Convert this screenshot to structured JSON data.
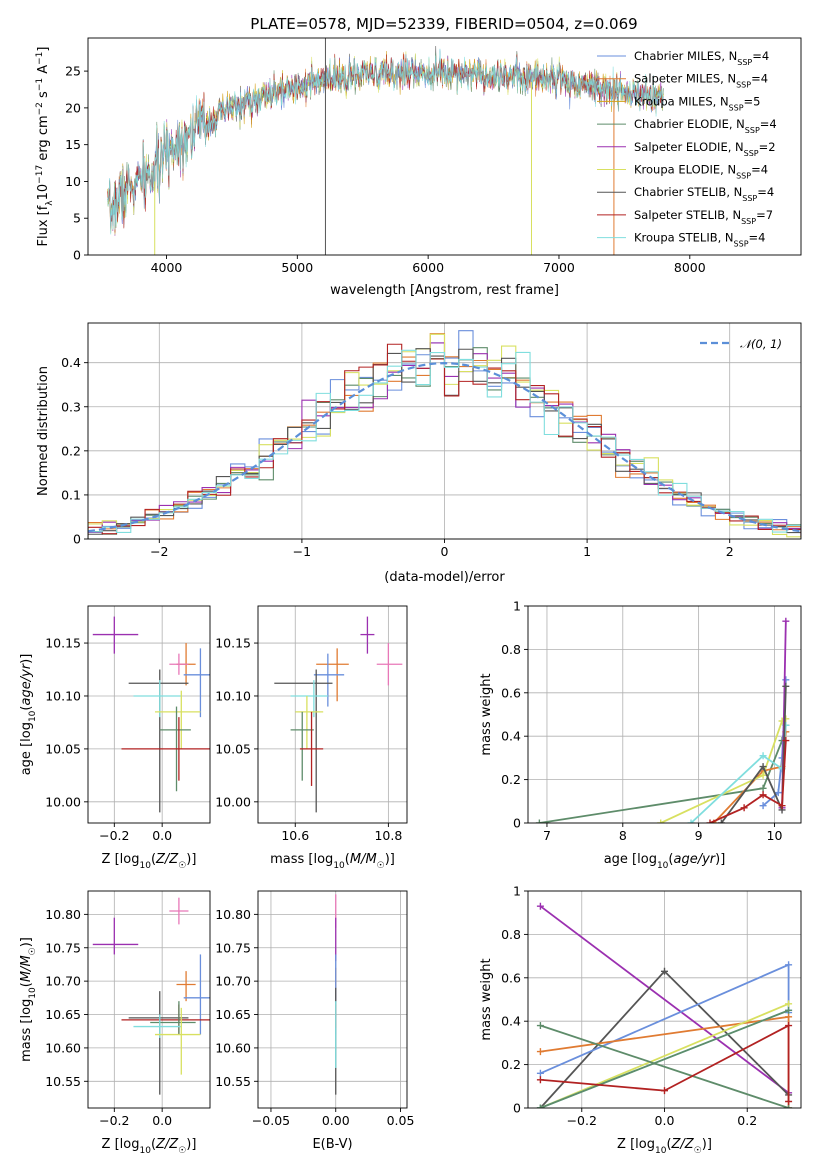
{
  "figure_title": "PLATE=0578, MJD=52339, FIBERID=0504, z=0.069",
  "colors": {
    "Chabrier MILES": "#6a8fdc",
    "Salpeter MILES": "#e07b32",
    "Kroupa MILES": "#d4a017",
    "Chabrier ELODIE": "#5e8c6a",
    "Salpeter ELODIE": "#9b30b0",
    "Kroupa ELODIE": "#d8e060",
    "Chabrier STELIB": "#555555",
    "Salpeter STELIB": "#b22222",
    "Kroupa STELIB": "#80dede",
    "pink": "#e878b8",
    "normal": "#5b8fd8",
    "grid": "#b0b0b0"
  },
  "chart_data": [
    {
      "type": "line",
      "panel": "spectrum",
      "xlabel": "wavelength [Angstrom, rest frame]",
      "ylabel": "Flux [f_λ10^-17 erg cm^-2 s^-1 A^-1]",
      "xlim": [
        3400,
        8850
      ],
      "ylim": [
        0,
        29.5
      ],
      "xticks": [
        4000,
        5000,
        6000,
        7000,
        8000
      ],
      "yticks": [
        0,
        5,
        10,
        15,
        20,
        25
      ],
      "grid": false,
      "legend_position": "top-right",
      "legend": [
        {
          "label": "Chabrier MILES, N",
          "sub": "SSP",
          "n": "=4",
          "color_key": "Chabrier MILES"
        },
        {
          "label": "Salpeter MILES, N",
          "sub": "SSP",
          "n": "=4",
          "color_key": "Salpeter MILES"
        },
        {
          "label": "Kroupa MILES, N",
          "sub": "SSP",
          "n": "=5",
          "color_key": "Kroupa MILES"
        },
        {
          "label": "Chabrier ELODIE, N",
          "sub": "SSP",
          "n": "=4",
          "color_key": "Chabrier ELODIE"
        },
        {
          "label": "Salpeter ELODIE, N",
          "sub": "SSP",
          "n": "=2",
          "color_key": "Salpeter ELODIE"
        },
        {
          "label": "Kroupa ELODIE, N",
          "sub": "SSP",
          "n": "=4",
          "color_key": "Kroupa ELODIE"
        },
        {
          "label": "Chabrier STELIB, N",
          "sub": "SSP",
          "n": "=4",
          "color_key": "Chabrier STELIB"
        },
        {
          "label": "Salpeter STELIB, N",
          "sub": "SSP",
          "n": "=7",
          "color_key": "Salpeter STELIB"
        },
        {
          "label": "Kroupa STELIB, N",
          "sub": "SSP",
          "n": "=4",
          "color_key": "Kroupa STELIB"
        }
      ],
      "continuum": {
        "x": [
          3550,
          3700,
          3900,
          4000,
          4200,
          4500,
          5000,
          5500,
          6000,
          6500,
          7000,
          7500,
          7800
        ],
        "y": [
          5.5,
          9,
          11,
          14,
          17,
          20,
          23,
          24.5,
          25,
          24.5,
          24,
          22,
          21.5
        ]
      },
      "spikes": [
        {
          "x": 3910,
          "ymin": 0,
          "ymax": 10,
          "color_key": "Kroupa ELODIE"
        },
        {
          "x": 5215,
          "ymin": 0,
          "ymax": 29.5,
          "color_key": "Chabrier STELIB"
        },
        {
          "x": 6790,
          "ymin": 0,
          "ymax": 23.5,
          "color_key": "Kroupa ELODIE"
        },
        {
          "x": 7420,
          "ymin": 0,
          "ymax": 24,
          "color_key": "Salpeter MILES"
        }
      ]
    },
    {
      "type": "histogram",
      "panel": "residuals",
      "xlabel": "(data-model)/error",
      "ylabel": "Normed distribution",
      "xlim": [
        -2.5,
        2.5
      ],
      "ylim": [
        0,
        0.49
      ],
      "xticks": [
        -2,
        -1,
        0,
        1,
        2
      ],
      "yticks": [
        0.0,
        0.1,
        0.2,
        0.3,
        0.4
      ],
      "grid": true,
      "bin_width": 0.1,
      "legend_position": "top-right",
      "normal_label": "N(0, 1)",
      "normal_label_glyph": "𝒩(0, 1)",
      "series_color_keys": [
        "Chabrier MILES",
        "Salpeter MILES",
        "Chabrier ELODIE",
        "Salpeter ELODIE",
        "Kroupa ELODIE",
        "Chabrier STELIB",
        "Salpeter STELIB",
        "Kroupa STELIB"
      ]
    },
    {
      "type": "errorbar",
      "panel": "age-vs-Z",
      "xlabel": "Z [log10(Z/Z☉)]",
      "ylabel": "age [log10(age/yr)]",
      "xlim": [
        -0.31,
        0.2
      ],
      "ylim": [
        9.98,
        10.185
      ],
      "xticks": [
        -0.2,
        0.0
      ],
      "xtick_labels": [
        "−0.2",
        "0.0"
      ],
      "yticks": [
        10.0,
        10.05,
        10.1,
        10.15
      ],
      "ytick_labels": [
        "10.00",
        "10.05",
        "10.10",
        "10.15"
      ],
      "grid": true,
      "points": [
        {
          "x": -0.2,
          "y": 10.158,
          "ex": [
            -0.29,
            -0.1
          ],
          "ey": [
            10.14,
            10.175
          ],
          "color_key": "Salpeter ELODIE"
        },
        {
          "x": 0.1,
          "y": 10.13,
          "ex": [
            0.06,
            0.14
          ],
          "ey": [
            10.11,
            10.15
          ],
          "color_key": "Salpeter MILES"
        },
        {
          "x": 0.07,
          "y": 10.13,
          "ex": [
            0.03,
            0.11
          ],
          "ey": [
            10.12,
            10.14
          ],
          "color_key": "pink"
        },
        {
          "x": 0.16,
          "y": 10.12,
          "ex": [
            0.09,
            0.2
          ],
          "ey": [
            10.08,
            10.145
          ],
          "color_key": "Chabrier MILES"
        },
        {
          "x": -0.01,
          "y": 10.112,
          "ex": [
            -0.14,
            0.11
          ],
          "ey": [
            9.99,
            10.125
          ],
          "color_key": "Chabrier STELIB"
        },
        {
          "x": -0.01,
          "y": 10.1,
          "ex": [
            -0.12,
            0.08
          ],
          "ey": [
            10.08,
            10.115
          ],
          "color_key": "Kroupa STELIB"
        },
        {
          "x": 0.08,
          "y": 10.085,
          "ex": [
            -0.03,
            0.16
          ],
          "ey": [
            10.05,
            10.105
          ],
          "color_key": "Kroupa ELODIE"
        },
        {
          "x": 0.06,
          "y": 10.068,
          "ex": [
            -0.01,
            0.12
          ],
          "ey": [
            10.01,
            10.09
          ],
          "color_key": "Chabrier ELODIE"
        },
        {
          "x": 0.07,
          "y": 10.05,
          "ex": [
            -0.17,
            0.2
          ],
          "ey": [
            10.02,
            10.08
          ],
          "color_key": "Salpeter STELIB"
        }
      ]
    },
    {
      "type": "errorbar",
      "panel": "age-vs-mass",
      "xlabel": "mass [log10(M/M☉)]",
      "xlim": [
        10.52,
        10.84
      ],
      "ylim": [
        9.98,
        10.185
      ],
      "xticks": [
        10.6,
        10.8
      ],
      "xtick_labels": [
        "10.6",
        "10.8"
      ],
      "yticks": [
        10.0,
        10.05,
        10.1,
        10.15
      ],
      "ytick_labels": [
        "10.00",
        "10.05",
        "10.10",
        "10.15"
      ],
      "grid": true,
      "points": [
        {
          "x": 10.755,
          "y": 10.158,
          "ex": [
            10.74,
            10.77
          ],
          "ey": [
            10.14,
            10.175
          ],
          "color_key": "Salpeter ELODIE"
        },
        {
          "x": 10.8,
          "y": 10.13,
          "ex": [
            10.775,
            10.83
          ],
          "ey": [
            10.11,
            10.15
          ],
          "color_key": "pink"
        },
        {
          "x": 10.69,
          "y": 10.13,
          "ex": [
            10.645,
            10.715
          ],
          "ey": [
            10.095,
            10.145
          ],
          "color_key": "Salpeter MILES"
        },
        {
          "x": 10.67,
          "y": 10.12,
          "ex": [
            10.64,
            10.705
          ],
          "ey": [
            10.09,
            10.14
          ],
          "color_key": "Chabrier MILES"
        },
        {
          "x": 10.645,
          "y": 10.112,
          "ex": [
            10.555,
            10.68
          ],
          "ey": [
            9.99,
            10.125
          ],
          "color_key": "Chabrier STELIB"
        },
        {
          "x": 10.64,
          "y": 10.1,
          "ex": [
            10.59,
            10.67
          ],
          "ey": [
            10.08,
            10.115
          ],
          "color_key": "Kroupa STELIB"
        },
        {
          "x": 10.625,
          "y": 10.085,
          "ex": [
            10.6,
            10.66
          ],
          "ey": [
            10.05,
            10.1
          ],
          "color_key": "Kroupa ELODIE"
        },
        {
          "x": 10.615,
          "y": 10.068,
          "ex": [
            10.59,
            10.64
          ],
          "ey": [
            10.02,
            10.085
          ],
          "color_key": "Chabrier ELODIE"
        },
        {
          "x": 10.635,
          "y": 10.05,
          "ex": [
            10.61,
            10.66
          ],
          "ey": [
            10.015,
            10.085
          ],
          "color_key": "Salpeter STELIB"
        }
      ]
    },
    {
      "type": "line",
      "panel": "mass-weight-vs-age",
      "xlabel": "age [log10(age/yr)]",
      "ylabel": "mass weight",
      "xlim": [
        6.75,
        10.35
      ],
      "ylim": [
        0,
        1.0
      ],
      "xticks": [
        7,
        8,
        9,
        10
      ],
      "yticks": [
        0.0,
        0.2,
        0.4,
        0.6,
        0.8,
        1.0
      ],
      "grid": true,
      "series": [
        {
          "color_key": "Chabrier ELODIE",
          "x": [
            6.9,
            9.85,
            10.1,
            10.15
          ],
          "y": [
            0.0,
            0.16,
            0.38,
            0.45
          ]
        },
        {
          "color_key": "Chabrier MILES",
          "x": [
            9.85,
            10.05,
            10.1,
            10.15
          ],
          "y": [
            0.08,
            0.14,
            0.3,
            0.66
          ]
        },
        {
          "color_key": "Salpeter MILES",
          "x": [
            9.2,
            9.85,
            10.1,
            10.15
          ],
          "y": [
            0.0,
            0.24,
            0.26,
            0.42
          ]
        },
        {
          "color_key": "Kroupa ELODIE",
          "x": [
            8.5,
            9.85,
            10.1,
            10.15
          ],
          "y": [
            0.0,
            0.22,
            0.47,
            0.48
          ]
        },
        {
          "color_key": "Kroupa STELIB",
          "x": [
            8.9,
            9.85,
            10.1,
            10.15
          ],
          "y": [
            0.0,
            0.31,
            0.25,
            0.45
          ]
        },
        {
          "color_key": "Salpeter ELODIE",
          "x": [
            10.1,
            10.15
          ],
          "y": [
            0.07,
            0.93
          ]
        },
        {
          "color_key": "Chabrier STELIB",
          "x": [
            9.3,
            9.85,
            10.1,
            10.15
          ],
          "y": [
            0.0,
            0.26,
            0.06,
            0.63
          ]
        },
        {
          "color_key": "Salpeter STELIB",
          "x": [
            9.15,
            9.6,
            9.85,
            10.1,
            10.15
          ],
          "y": [
            0.0,
            0.07,
            0.13,
            0.08,
            0.38
          ]
        }
      ]
    },
    {
      "type": "errorbar",
      "panel": "mass-vs-Z",
      "xlabel": "Z [log10(Z/Z☉)]",
      "ylabel": "mass [log10(M/M☉)]",
      "xlim": [
        -0.31,
        0.2
      ],
      "ylim": [
        10.51,
        10.835
      ],
      "xticks": [
        -0.2,
        0.0
      ],
      "xtick_labels": [
        "−0.2",
        "0.0"
      ],
      "yticks": [
        10.55,
        10.6,
        10.65,
        10.7,
        10.75,
        10.8
      ],
      "ytick_labels": [
        "10.55",
        "10.60",
        "10.65",
        "10.70",
        "10.75",
        "10.80"
      ],
      "grid": true,
      "points": [
        {
          "x": 0.07,
          "y": 10.805,
          "ex": [
            0.03,
            0.11
          ],
          "ey": [
            10.785,
            10.825
          ],
          "color_key": "pink"
        },
        {
          "x": -0.2,
          "y": 10.755,
          "ex": [
            -0.29,
            -0.1
          ],
          "ey": [
            10.74,
            10.795
          ],
          "color_key": "Salpeter ELODIE"
        },
        {
          "x": 0.1,
          "y": 10.695,
          "ex": [
            0.06,
            0.14
          ],
          "ey": [
            10.67,
            10.715
          ],
          "color_key": "Salpeter MILES"
        },
        {
          "x": 0.16,
          "y": 10.675,
          "ex": [
            0.09,
            0.2
          ],
          "ey": [
            10.62,
            10.74
          ],
          "color_key": "Chabrier MILES"
        },
        {
          "x": -0.01,
          "y": 10.645,
          "ex": [
            -0.14,
            0.11
          ],
          "ey": [
            10.53,
            10.685
          ],
          "color_key": "Chabrier STELIB"
        },
        {
          "x": 0.07,
          "y": 10.642,
          "ex": [
            -0.17,
            0.2
          ],
          "ey": [
            10.62,
            10.665
          ],
          "color_key": "Salpeter STELIB"
        },
        {
          "x": 0.07,
          "y": 10.638,
          "ex": [
            -0.05,
            0.14
          ],
          "ey": [
            10.62,
            10.67
          ],
          "color_key": "Chabrier ELODIE"
        },
        {
          "x": -0.01,
          "y": 10.632,
          "ex": [
            -0.12,
            0.08
          ],
          "ey": [
            10.615,
            10.65
          ],
          "color_key": "Kroupa STELIB"
        },
        {
          "x": 0.08,
          "y": 10.62,
          "ex": [
            -0.03,
            0.16
          ],
          "ey": [
            10.56,
            10.66
          ],
          "color_key": "Kroupa ELODIE"
        }
      ]
    },
    {
      "type": "errorbar",
      "panel": "mass-vs-EBV",
      "xlabel": "E(B-V)",
      "xlim": [
        -0.06,
        0.055
      ],
      "ylim": [
        10.51,
        10.835
      ],
      "xticks": [
        -0.05,
        0.0,
        0.05
      ],
      "xtick_labels": [
        "−0.05",
        "0.00",
        "0.05"
      ],
      "yticks": [
        10.55,
        10.6,
        10.65,
        10.7,
        10.75,
        10.8
      ],
      "ytick_labels": [
        "10.55",
        "10.60",
        "10.65",
        "10.70",
        "10.75",
        "10.80"
      ],
      "grid": true,
      "points": [
        {
          "x": 0.0,
          "y": 10.805,
          "ey": [
            10.78,
            10.83
          ],
          "color_key": "pink"
        },
        {
          "x": 0.0,
          "y": 10.755,
          "ey": [
            10.73,
            10.795
          ],
          "color_key": "Salpeter ELODIE"
        },
        {
          "x": 0.0,
          "y": 10.695,
          "ey": [
            10.67,
            10.72
          ],
          "color_key": "Salpeter MILES"
        },
        {
          "x": 0.0,
          "y": 10.675,
          "ey": [
            10.62,
            10.74
          ],
          "color_key": "Chabrier MILES"
        },
        {
          "x": 0.0,
          "y": 10.64,
          "ey": [
            10.53,
            10.69
          ],
          "color_key": "Chabrier STELIB"
        },
        {
          "x": 0.0,
          "y": 10.645,
          "ey": [
            10.63,
            10.665
          ],
          "color_key": "Salpeter STELIB"
        },
        {
          "x": 0.0,
          "y": 10.63,
          "ey": [
            10.57,
            10.67
          ],
          "color_key": "Kroupa STELIB"
        }
      ]
    },
    {
      "type": "line",
      "panel": "mass-weight-vs-Z",
      "xlabel": "Z [log10(Z/Z☉)]",
      "ylabel": "mass weight",
      "xlim": [
        -0.33,
        0.33
      ],
      "ylim": [
        0,
        1.0
      ],
      "xticks": [
        -0.2,
        0.0,
        0.2
      ],
      "xtick_labels": [
        "−0.2",
        "0.0",
        "0.2"
      ],
      "yticks": [
        0.0,
        0.2,
        0.4,
        0.6,
        0.8,
        1.0
      ],
      "grid": true,
      "series": [
        {
          "color_key": "Salpeter ELODIE",
          "x": [
            -0.3,
            0.3
          ],
          "y": [
            0.93,
            0.07
          ]
        },
        {
          "color_key": "Chabrier STELIB",
          "x": [
            -0.3,
            0.0,
            0.3
          ],
          "y": [
            0.0,
            0.63,
            0.06
          ]
        },
        {
          "color_key": "Chabrier MILES",
          "x": [
            -0.3,
            0.3,
            0.3
          ],
          "y": [
            0.16,
            0.66,
            0.44
          ]
        },
        {
          "color_key": "Salpeter MILES",
          "x": [
            -0.3,
            0.3,
            0.3
          ],
          "y": [
            0.26,
            0.42,
            0.0
          ]
        },
        {
          "color_key": "Kroupa ELODIE",
          "x": [
            -0.3,
            0.3
          ],
          "y": [
            0.0,
            0.48
          ]
        },
        {
          "color_key": "Kroupa STELIB",
          "x": [
            -0.3,
            0.3
          ],
          "y": [
            0.0,
            0.45
          ]
        },
        {
          "color_key": "Chabrier ELODIE",
          "x": [
            -0.3,
            0.3
          ],
          "y": [
            0.38,
            0.0
          ]
        },
        {
          "color_key": "Chabrier ELODIE",
          "x": [
            -0.3,
            0.3
          ],
          "y": [
            0.0,
            0.45
          ]
        },
        {
          "color_key": "Salpeter STELIB",
          "x": [
            -0.3,
            0.0,
            0.3,
            0.3
          ],
          "y": [
            0.13,
            0.08,
            0.38,
            0.03
          ]
        }
      ]
    }
  ]
}
